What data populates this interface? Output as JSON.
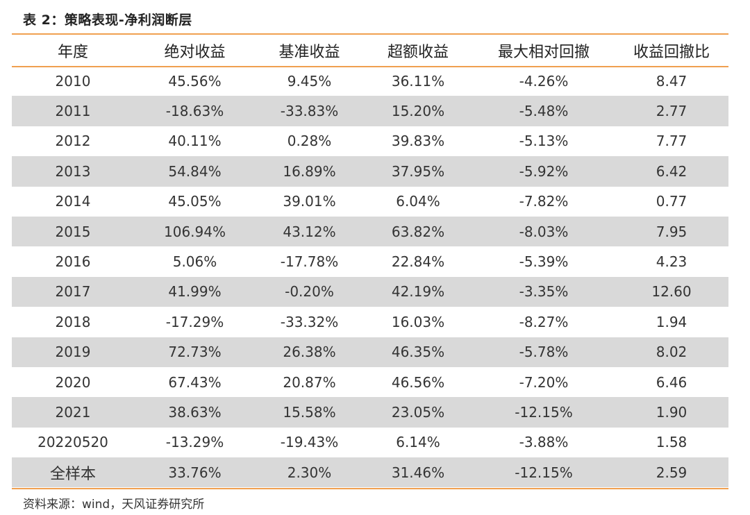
{
  "caption": "表 2：策略表现-净利润断层",
  "headers": [
    "年度",
    "绝对收益",
    "基准收益",
    "超额收益",
    "最大相对回撤",
    "收益回撤比"
  ],
  "rows": [
    [
      "2010",
      "45.56%",
      "9.45%",
      "36.11%",
      "-4.26%",
      "8.47"
    ],
    [
      "2011",
      "-18.63%",
      "-33.83%",
      "15.20%",
      "-5.48%",
      "2.77"
    ],
    [
      "2012",
      "40.11%",
      "0.28%",
      "39.83%",
      "-5.13%",
      "7.77"
    ],
    [
      "2013",
      "54.84%",
      "16.89%",
      "37.95%",
      "-5.92%",
      "6.42"
    ],
    [
      "2014",
      "45.05%",
      "39.01%",
      "6.04%",
      "-7.82%",
      "0.77"
    ],
    [
      "2015",
      "106.94%",
      "43.12%",
      "63.82%",
      "-8.03%",
      "7.95"
    ],
    [
      "2016",
      "5.06%",
      "-17.78%",
      "22.84%",
      "-5.39%",
      "4.23"
    ],
    [
      "2017",
      "41.99%",
      "-0.20%",
      "42.19%",
      "-3.35%",
      "12.60"
    ],
    [
      "2018",
      "-17.29%",
      "-33.32%",
      "16.03%",
      "-8.27%",
      "1.94"
    ],
    [
      "2019",
      "72.73%",
      "26.38%",
      "46.35%",
      "-5.78%",
      "8.02"
    ],
    [
      "2020",
      "67.43%",
      "20.87%",
      "46.56%",
      "-7.20%",
      "6.46"
    ],
    [
      "2021",
      "38.63%",
      "15.58%",
      "23.05%",
      "-12.15%",
      "1.90"
    ],
    [
      "20220520",
      "-13.29%",
      "-19.43%",
      "6.14%",
      "-3.88%",
      "1.58"
    ],
    [
      "全样本",
      "33.76%",
      "2.30%",
      "31.46%",
      "-12.15%",
      "2.59"
    ]
  ],
  "source": "资料来源：wind，天风证券研究所",
  "colors": {
    "accent_rule": "#f0a050",
    "stripe": "#d9d9d9"
  }
}
